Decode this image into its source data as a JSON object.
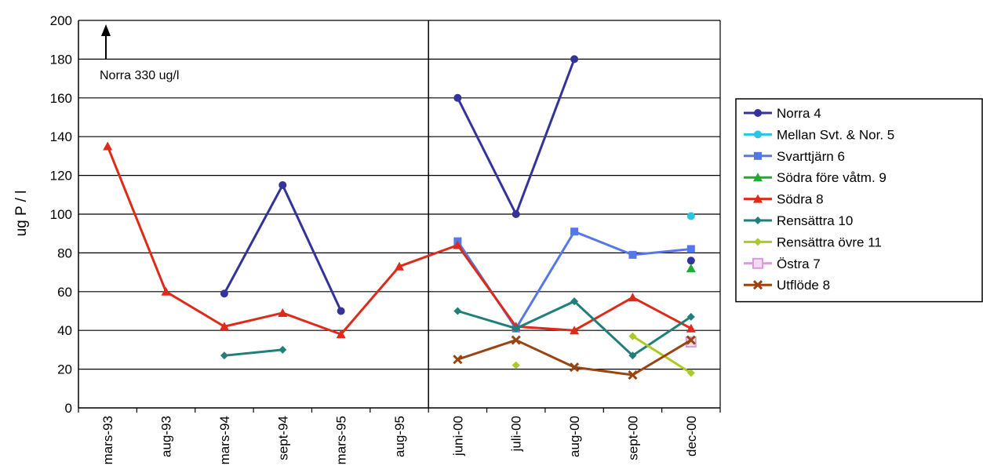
{
  "chart_data": {
    "type": "line",
    "title": "",
    "xlabel": "",
    "ylabel": "ug P / l",
    "ylim": [
      0,
      200
    ],
    "yticks": [
      0,
      20,
      40,
      60,
      80,
      100,
      120,
      140,
      160,
      180,
      200
    ],
    "grid": true,
    "legend_position": "right",
    "categories": [
      "mars-93",
      "aug-93",
      "mars-94",
      "sept-94",
      "mars-95",
      "aug-95",
      "juni-00",
      "juli-00",
      "aug-00",
      "sept-00",
      "dec-00"
    ],
    "annotation": "Norra 330 ug/l",
    "series": [
      {
        "name": "Norra 4",
        "color": "#33339a",
        "marker": "circle",
        "values": [
          null,
          null,
          59,
          115,
          50,
          null,
          160,
          100,
          180,
          null,
          76
        ],
        "break_after": [
          4
        ]
      },
      {
        "name": "Mellan Svt. & Nor. 5",
        "color": "#27c7e0",
        "marker": "circle",
        "values": [
          null,
          null,
          null,
          null,
          null,
          null,
          null,
          null,
          null,
          null,
          99
        ],
        "break_after": []
      },
      {
        "name": "Svarttjärn 6",
        "color": "#5577e8",
        "marker": "square",
        "values": [
          null,
          null,
          null,
          null,
          null,
          null,
          86,
          41,
          91,
          79,
          82
        ],
        "break_after": []
      },
      {
        "name": "Södra före våtm. 9",
        "color": "#22aa33",
        "marker": "triangle",
        "values": [
          null,
          null,
          null,
          null,
          null,
          null,
          null,
          null,
          null,
          null,
          72
        ],
        "break_after": []
      },
      {
        "name": "Södra 8",
        "color": "#dd2b1b",
        "marker": "triangle",
        "values": [
          135,
          60,
          42,
          49,
          38,
          73,
          84,
          42,
          40,
          57,
          41
        ],
        "break_after": []
      },
      {
        "name": "Rensättra 10",
        "color": "#1f7f7a",
        "marker": "diamond",
        "values": [
          null,
          null,
          27,
          30,
          null,
          null,
          50,
          41,
          55,
          27,
          47
        ],
        "break_after": [
          3
        ]
      },
      {
        "name": "Rensättra övre 11",
        "color": "#aacc22",
        "marker": "diamond",
        "values": [
          null,
          null,
          null,
          null,
          null,
          null,
          null,
          22,
          null,
          37,
          18
        ],
        "break_after": [
          7
        ]
      },
      {
        "name": "Östra 7",
        "color": "#dd99dd",
        "marker": "openSquare",
        "values": [
          null,
          null,
          null,
          null,
          null,
          null,
          null,
          null,
          null,
          null,
          34
        ],
        "break_after": []
      },
      {
        "name": "Utflöde 8",
        "color": "#994411",
        "marker": "x",
        "values": [
          null,
          null,
          null,
          null,
          null,
          null,
          25,
          35,
          21,
          17,
          35
        ],
        "break_after": []
      }
    ]
  }
}
